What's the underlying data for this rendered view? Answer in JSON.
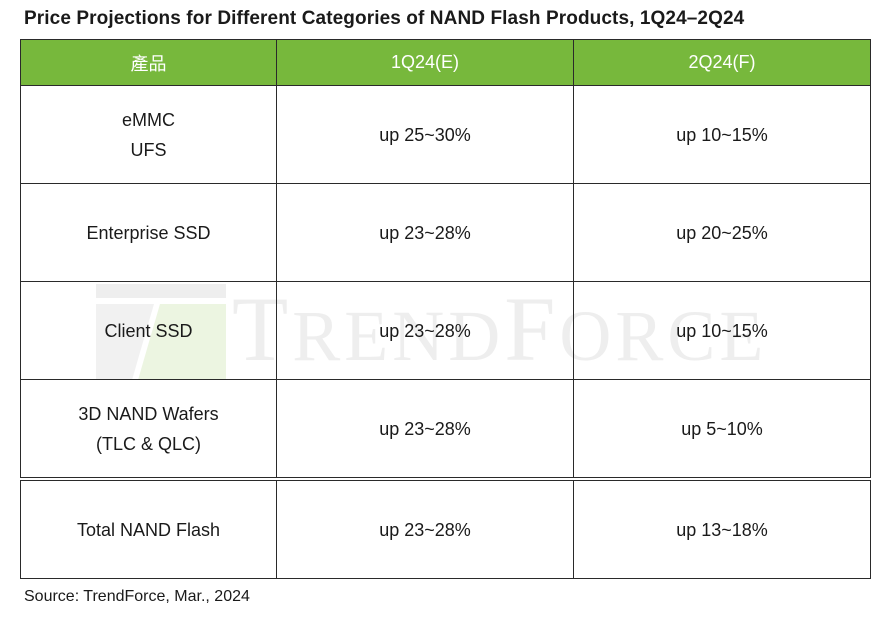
{
  "title": "Price Projections for Different Categories of NAND Flash Products, 1Q24–2Q24",
  "watermark": "TRENDFORCE",
  "table": {
    "headers": [
      "產品",
      "1Q24(E)",
      "2Q24(F)"
    ],
    "rows": [
      {
        "product": [
          "eMMC",
          "UFS"
        ],
        "q1": "up 25~30%",
        "q2": "up 10~15%"
      },
      {
        "product": [
          "Enterprise SSD"
        ],
        "q1": "up 23~28%",
        "q2": "up 20~25%"
      },
      {
        "product": [
          "Client SSD"
        ],
        "q1": "up 23~28%",
        "q2": "up 10~15%"
      },
      {
        "product": [
          "3D NAND Wafers",
          "(TLC & QLC)"
        ],
        "q1": "up 23~28%",
        "q2": "up 5~10%"
      },
      {
        "product": [
          "Total NAND Flash"
        ],
        "q1": "up 23~28%",
        "q2": "up 13~18%"
      }
    ]
  },
  "chart_data": {
    "type": "table",
    "title": "Price Projections for Different Categories of NAND Flash Products, 1Q24–2Q24",
    "columns": [
      "產品",
      "1Q24(E)",
      "2Q24(F)"
    ],
    "rows": [
      [
        "eMMC UFS",
        "up 25~30%",
        "up 10~15%"
      ],
      [
        "Enterprise SSD",
        "up 23~28%",
        "up 20~25%"
      ],
      [
        "Client SSD",
        "up 23~28%",
        "up 10~15%"
      ],
      [
        "3D NAND Wafers (TLC & QLC)",
        "up 23~28%",
        "up 5~10%"
      ],
      [
        "Total NAND Flash",
        "up 23~28%",
        "up 13~18%"
      ]
    ]
  },
  "source": "Source: TrendForce, Mar., 2024",
  "colors": {
    "header_bg": "#77b83c",
    "header_text": "#ffffff",
    "border": "#2a2a2a",
    "text": "#1a1a1a"
  }
}
